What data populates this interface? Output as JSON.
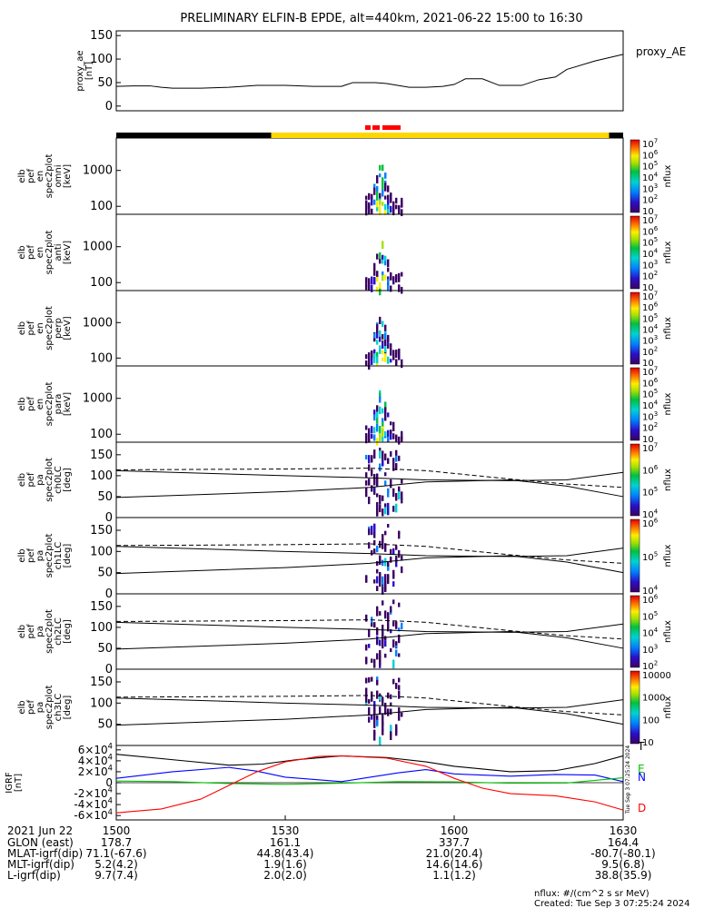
{
  "title": "PRELIMINARY ELFIN-B EPDE, alt=440km, 2021-06-22 15:00 to 16:30",
  "colors": {
    "frame": "#000000",
    "overlap_bar": "#ffd700",
    "science_mark": "#ff0000",
    "igrf_east": "#00c000",
    "igrf_north": "#0000ff",
    "igrf_down": "#ff0000"
  },
  "chart_data": [
    {
      "id": "ae",
      "type": "line",
      "ylabel": "proxy_ae\n[nT]",
      "ylim": [
        -10,
        160
      ],
      "yticks": [
        "0",
        "50",
        "100",
        "150"
      ],
      "legend": "proxy_AE",
      "series": [
        {
          "name": "proxy_AE",
          "x": [
            0,
            3,
            6,
            8,
            10,
            15,
            20,
            25,
            30,
            35,
            40,
            42,
            46,
            48,
            52,
            55,
            58,
            60,
            62,
            65,
            68,
            72,
            75,
            78,
            80,
            85,
            90
          ],
          "y": [
            42,
            43,
            43,
            40,
            38,
            38,
            40,
            44,
            44,
            42,
            42,
            50,
            50,
            48,
            40,
            40,
            42,
            46,
            58,
            58,
            44,
            44,
            56,
            62,
            78,
            96,
            110
          ]
        }
      ]
    },
    {
      "id": "omni",
      "type": "heatmap",
      "ylabel": "elb\npef\nen\nspec2plot\nomni\n[keV]",
      "yscale": "log",
      "ylim": [
        60,
        8000
      ],
      "yticks": [
        "100",
        "1000"
      ],
      "zlabel": "nflux",
      "zticks": [
        "10",
        "10^2",
        "10^3",
        "10^4",
        "10^5",
        "10^6",
        "10^7"
      ]
    },
    {
      "id": "anti",
      "type": "heatmap",
      "ylabel": "elb\npef\nen\nspec2plot\nanti\n[keV]",
      "yscale": "log",
      "ylim": [
        60,
        8000
      ],
      "yticks": [
        "100",
        "1000"
      ],
      "zlabel": "nflux",
      "zticks": [
        "10",
        "10^2",
        "10^3",
        "10^4",
        "10^5",
        "10^6",
        "10^7"
      ]
    },
    {
      "id": "perp",
      "type": "heatmap",
      "ylabel": "elb\npef\nen\nspec2plot\nperp\n[keV]",
      "yscale": "log",
      "ylim": [
        60,
        8000
      ],
      "yticks": [
        "100",
        "1000"
      ],
      "zlabel": "nflux",
      "zticks": [
        "10",
        "10^2",
        "10^3",
        "10^4",
        "10^5",
        "10^6",
        "10^7"
      ]
    },
    {
      "id": "para",
      "type": "heatmap",
      "ylabel": "elb\npef\nen\nspec2plot\npara\n[keV]",
      "yscale": "log",
      "ylim": [
        60,
        8000
      ],
      "yticks": [
        "100",
        "1000"
      ],
      "zlabel": "nflux",
      "zticks": [
        "10",
        "10^2",
        "10^3",
        "10^4",
        "10^5",
        "10^6",
        "10^7"
      ]
    },
    {
      "id": "ch0",
      "type": "heatmap",
      "ylabel": "elb\npef\npa\nspec2plot\nch0LC\n[deg]",
      "ylim": [
        0,
        180
      ],
      "yticks": [
        "0",
        "50",
        "100",
        "150"
      ],
      "zlabel": "nflux",
      "zticks": [
        "10^4",
        "10^5",
        "10^6",
        "10^7"
      ]
    },
    {
      "id": "ch1",
      "type": "heatmap",
      "ylabel": "elb\npef\npa\nspec2plot\nch1LC\n[deg]",
      "ylim": [
        0,
        180
      ],
      "yticks": [
        "0",
        "50",
        "100",
        "150"
      ],
      "zlabel": "nflux",
      "zticks": [
        "10^4",
        "10^5",
        "10^6"
      ]
    },
    {
      "id": "ch2",
      "type": "heatmap",
      "ylabel": "elb\npef\npa\nspec2plot\nch2LC\n[deg]",
      "ylim": [
        0,
        180
      ],
      "yticks": [
        "0",
        "50",
        "100",
        "150"
      ],
      "zlabel": "nflux",
      "zticks": [
        "10^2",
        "10^3",
        "10^4",
        "10^5",
        "10^6"
      ]
    },
    {
      "id": "ch3",
      "type": "heatmap",
      "ylabel": "elb\npef\npa\nspec2plot\nch3LC\n[deg]",
      "ylim": [
        0,
        180
      ],
      "yticks": [
        "50",
        "100",
        "150"
      ],
      "zlabel": "nflux",
      "zticks": [
        "10",
        "100",
        "1000",
        "10000"
      ]
    },
    {
      "id": "igrf",
      "type": "line",
      "ylabel": "IGRF\n[nT]",
      "ylim": [
        -68000,
        68000
      ],
      "yticks": [
        "-6×10^4",
        "-4×10^4",
        "-2×10^4",
        "0",
        "2×10^4",
        "4×10^4",
        "6×10^4"
      ],
      "series": [
        {
          "name": "T",
          "color": "#000000",
          "x": [
            0,
            12,
            20,
            26,
            32,
            40,
            48,
            55,
            60,
            70,
            78,
            85,
            90
          ],
          "y": [
            52000,
            40000,
            32000,
            34000,
            42000,
            49000,
            46000,
            38000,
            30000,
            20000,
            22000,
            35000,
            49000
          ]
        },
        {
          "name": "N",
          "color": "#0000ff",
          "x": [
            0,
            10,
            20,
            25,
            30,
            40,
            50,
            55,
            60,
            70,
            78,
            85,
            90
          ],
          "y": [
            8000,
            20000,
            28000,
            21000,
            10000,
            2000,
            18000,
            24000,
            16000,
            12000,
            15000,
            14000,
            2000
          ]
        },
        {
          "name": "E",
          "color": "#00c000",
          "x": [
            0,
            10,
            20,
            30,
            40,
            50,
            60,
            70,
            80,
            90
          ],
          "y": [
            3000,
            2000,
            -1500,
            -3000,
            -1000,
            2000,
            1500,
            -1000,
            -500,
            9000
          ]
        },
        {
          "name": "D",
          "color": "#ff0000",
          "x": [
            0,
            8,
            15,
            20,
            25,
            30,
            36,
            40,
            48,
            55,
            60,
            65,
            70,
            78,
            85,
            90
          ],
          "y": [
            -55000,
            -48000,
            -30000,
            -5000,
            20000,
            38000,
            48000,
            49000,
            45000,
            30000,
            8000,
            -10000,
            -20000,
            -24000,
            -35000,
            -50000
          ]
        }
      ]
    }
  ],
  "time_labels": [
    "1500",
    "1530",
    "1600",
    "1630"
  ],
  "ephem": {
    "date": "2021 Jun 22",
    "rows": [
      {
        "label": "GLON (east)",
        "vals": [
          "178.7",
          "161.1",
          "337.7",
          "164.4"
        ]
      },
      {
        "label": "MLAT-igrf(dip)",
        "vals": [
          "71.1(-67.6)",
          "44.8(43.4)",
          "21.0(20.4)",
          "-80.7(-80.1)"
        ]
      },
      {
        "label": "MLT-igrf(dip)",
        "vals": [
          "5.2(4.2)",
          "1.9(1.6)",
          "14.6(14.6)",
          "9.5(6.8)"
        ]
      },
      {
        "label": "L-igrf(dip)",
        "vals": [
          "9.7(7.4)",
          "2.0(2.0)",
          "1.1(1.2)",
          "38.8(35.9)"
        ]
      }
    ]
  },
  "legend_letters": {
    "T": "T",
    "E": "E",
    "N": "N",
    "D": "D"
  },
  "footer": {
    "units": "nflux: #/(cm^2 s sr MeV)",
    "created": "Created: Tue Sep  3 07:25:24 2024"
  },
  "side_stamp": "Tue Sep  3 07:25:24 2024"
}
